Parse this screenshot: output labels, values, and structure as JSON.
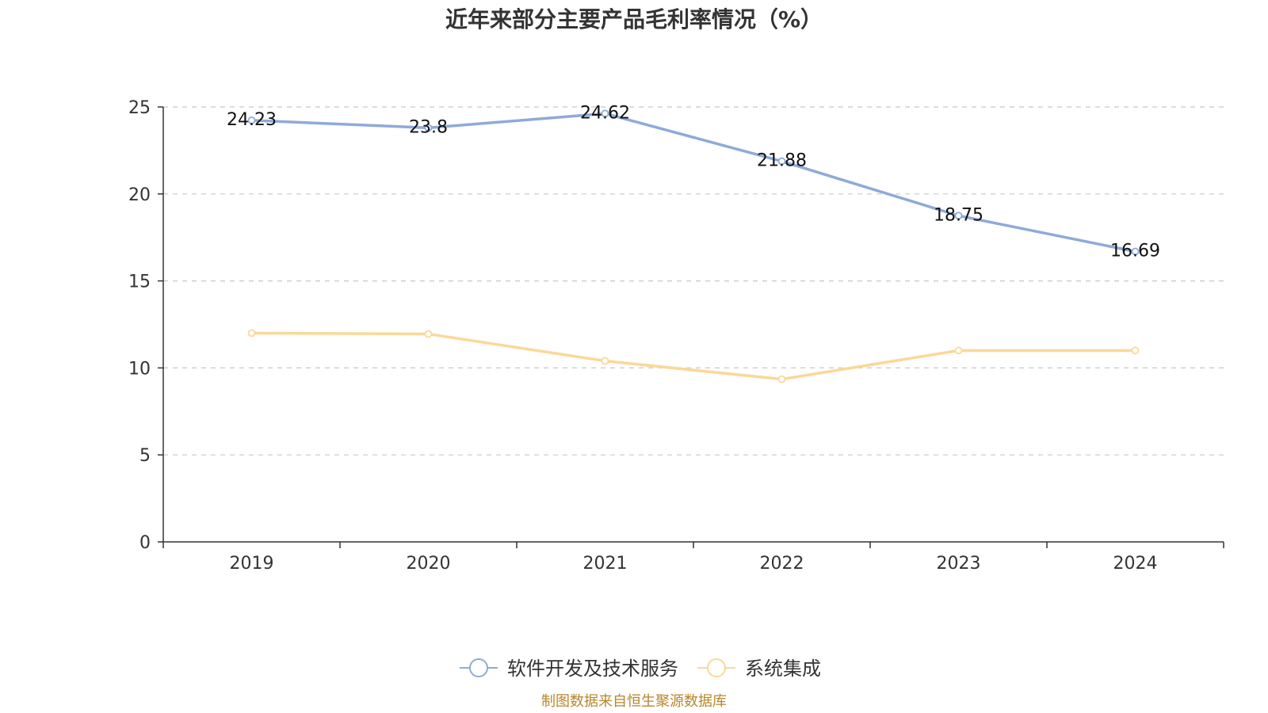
{
  "chart_data": {
    "type": "line",
    "title": "近年来部分主要产品毛利率情况（%）",
    "xlabel": "",
    "ylabel": "",
    "categories": [
      "2019",
      "2020",
      "2021",
      "2022",
      "2023",
      "2024"
    ],
    "ylim": [
      0,
      25
    ],
    "yticks": [
      0,
      5,
      10,
      15,
      20,
      25
    ],
    "grid": true,
    "legend_position": "bottom",
    "series": [
      {
        "name": "软件开发及技术服务",
        "values": [
          24.23,
          23.8,
          24.62,
          21.88,
          18.75,
          16.69
        ],
        "labels": [
          "24.23",
          "23.8",
          "24.62",
          "21.88",
          "18.75",
          "16.69"
        ],
        "color": "#8eaad9",
        "show_labels": true
      },
      {
        "name": "系统集成",
        "values": [
          12.0,
          11.95,
          10.4,
          9.35,
          11.0,
          11.0
        ],
        "color": "#fad898",
        "show_labels": false
      }
    ],
    "source": "制图数据来自恒生聚源数据库",
    "source_color": "#b8862b"
  }
}
